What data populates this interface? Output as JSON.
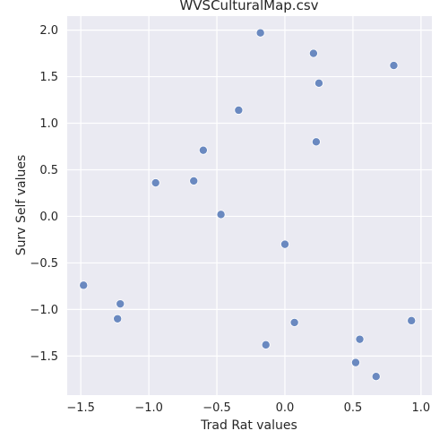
{
  "chart_data": {
    "type": "scatter",
    "title": "WVSCulturalMap.csv",
    "xlabel": "Trad Rat values",
    "ylabel": "Surv Self values",
    "xlim": [
      -1.6,
      1.08
    ],
    "ylim": [
      -1.92,
      2.15
    ],
    "xticks": [
      -1.5,
      -1.0,
      -0.5,
      0.0,
      0.5,
      1.0
    ],
    "xtick_labels": [
      "−1.5",
      "−1.0",
      "−0.5",
      "0.0",
      "0.5",
      "1.0"
    ],
    "yticks": [
      -1.5,
      -1.0,
      -0.5,
      0.0,
      0.5,
      1.0,
      1.5,
      2.0
    ],
    "ytick_labels": [
      "−1.5",
      "−1.0",
      "−0.5",
      "0.0",
      "0.5",
      "1.0",
      "1.5",
      "2.0"
    ],
    "grid": true,
    "background": "#eaeaf2",
    "point_color": "#6a89c0",
    "points": [
      {
        "x": -0.18,
        "y": 1.97
      },
      {
        "x": 0.21,
        "y": 1.75
      },
      {
        "x": 0.8,
        "y": 1.62
      },
      {
        "x": 0.25,
        "y": 1.43
      },
      {
        "x": -0.34,
        "y": 1.14
      },
      {
        "x": 0.23,
        "y": 0.8
      },
      {
        "x": -0.6,
        "y": 0.71
      },
      {
        "x": -0.95,
        "y": 0.36
      },
      {
        "x": -0.67,
        "y": 0.38
      },
      {
        "x": -0.47,
        "y": 0.02
      },
      {
        "x": 0.0,
        "y": -0.3
      },
      {
        "x": -1.48,
        "y": -0.74
      },
      {
        "x": -1.21,
        "y": -0.94
      },
      {
        "x": -1.23,
        "y": -1.1
      },
      {
        "x": 0.07,
        "y": -1.14
      },
      {
        "x": 0.93,
        "y": -1.12
      },
      {
        "x": -0.14,
        "y": -1.38
      },
      {
        "x": 0.55,
        "y": -1.32
      },
      {
        "x": 0.52,
        "y": -1.57
      },
      {
        "x": 0.67,
        "y": -1.72
      }
    ]
  }
}
